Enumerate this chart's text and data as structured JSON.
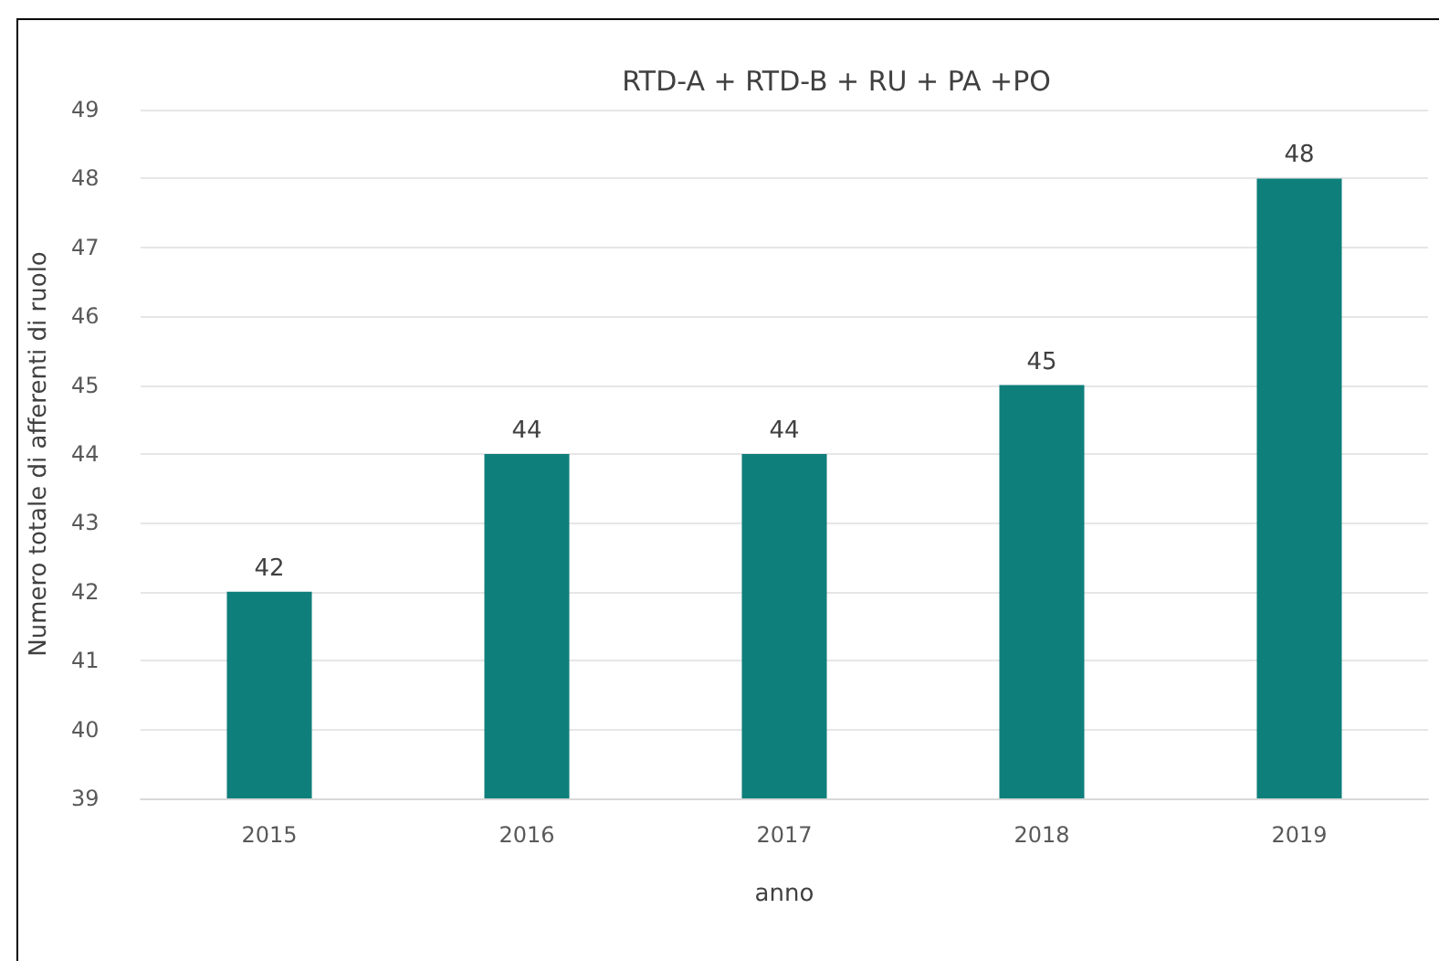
{
  "chart_data": {
    "type": "bar",
    "title": "RTD-A + RTD-B + RU + PA +PO",
    "xlabel": "anno",
    "ylabel": "Numero totale di afferenti di ruolo",
    "categories": [
      "2015",
      "2016",
      "2017",
      "2018",
      "2019"
    ],
    "values": [
      42,
      44,
      44,
      45,
      48
    ],
    "color": "#0f7f7b",
    "ylim": [
      39,
      49
    ],
    "yticks": [
      39,
      40,
      41,
      42,
      43,
      44,
      45,
      46,
      47,
      48,
      49
    ],
    "grid": "y",
    "data_labels": true
  }
}
